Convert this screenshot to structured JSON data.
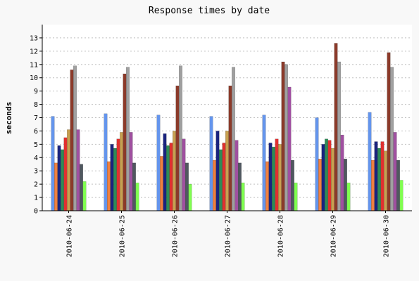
{
  "chart_data": {
    "type": "bar",
    "title": "Response times by date",
    "xlabel": "",
    "ylabel": "seconds",
    "ylim": [
      0,
      14
    ],
    "yticks": [
      0,
      1,
      2,
      3,
      4,
      5,
      6,
      7,
      8,
      9,
      10,
      11,
      12,
      13
    ],
    "grid": "horizontal-dashed",
    "legend": "none",
    "categories": [
      "2010-06-24",
      "2010-06-25",
      "2010-06-26",
      "2010-06-27",
      "2010-06-28",
      "2010-06-29",
      "2010-06-30"
    ],
    "series": [
      {
        "color": "#6495ed",
        "values": [
          7.1,
          7.3,
          7.2,
          7.1,
          7.2,
          7.0,
          7.4
        ]
      },
      {
        "color": "#f08040",
        "values": [
          3.6,
          3.7,
          4.1,
          3.8,
          3.7,
          3.9,
          3.8
        ]
      },
      {
        "color": "#1a237e",
        "values": [
          4.9,
          5.0,
          5.8,
          6.0,
          5.1,
          5.0,
          5.2
        ]
      },
      {
        "color": "#2e8b57",
        "values": [
          4.6,
          4.7,
          4.9,
          4.6,
          4.8,
          5.4,
          4.7
        ]
      },
      {
        "color": "#e03030",
        "values": [
          5.5,
          5.4,
          5.1,
          5.1,
          5.4,
          5.3,
          5.2
        ]
      },
      {
        "color": "#c8a050",
        "values": [
          6.1,
          5.9,
          6.0,
          6.0,
          5.0,
          4.7,
          4.5
        ]
      },
      {
        "color": "#8b3a2a",
        "values": [
          10.6,
          10.3,
          9.4,
          9.4,
          11.2,
          12.6,
          11.9
        ]
      },
      {
        "color": "#a0a0a0",
        "values": [
          10.9,
          10.8,
          10.9,
          10.8,
          11.0,
          11.2,
          10.8
        ]
      },
      {
        "color": "#a050a0",
        "values": [
          6.1,
          5.9,
          5.4,
          5.3,
          9.3,
          5.7,
          5.9
        ]
      },
      {
        "color": "#505860",
        "values": [
          3.5,
          3.6,
          3.6,
          3.6,
          3.8,
          3.9,
          3.8
        ]
      },
      {
        "color": "#80ff50",
        "values": [
          2.2,
          2.1,
          2.0,
          2.1,
          2.1,
          2.1,
          2.3
        ]
      }
    ]
  }
}
